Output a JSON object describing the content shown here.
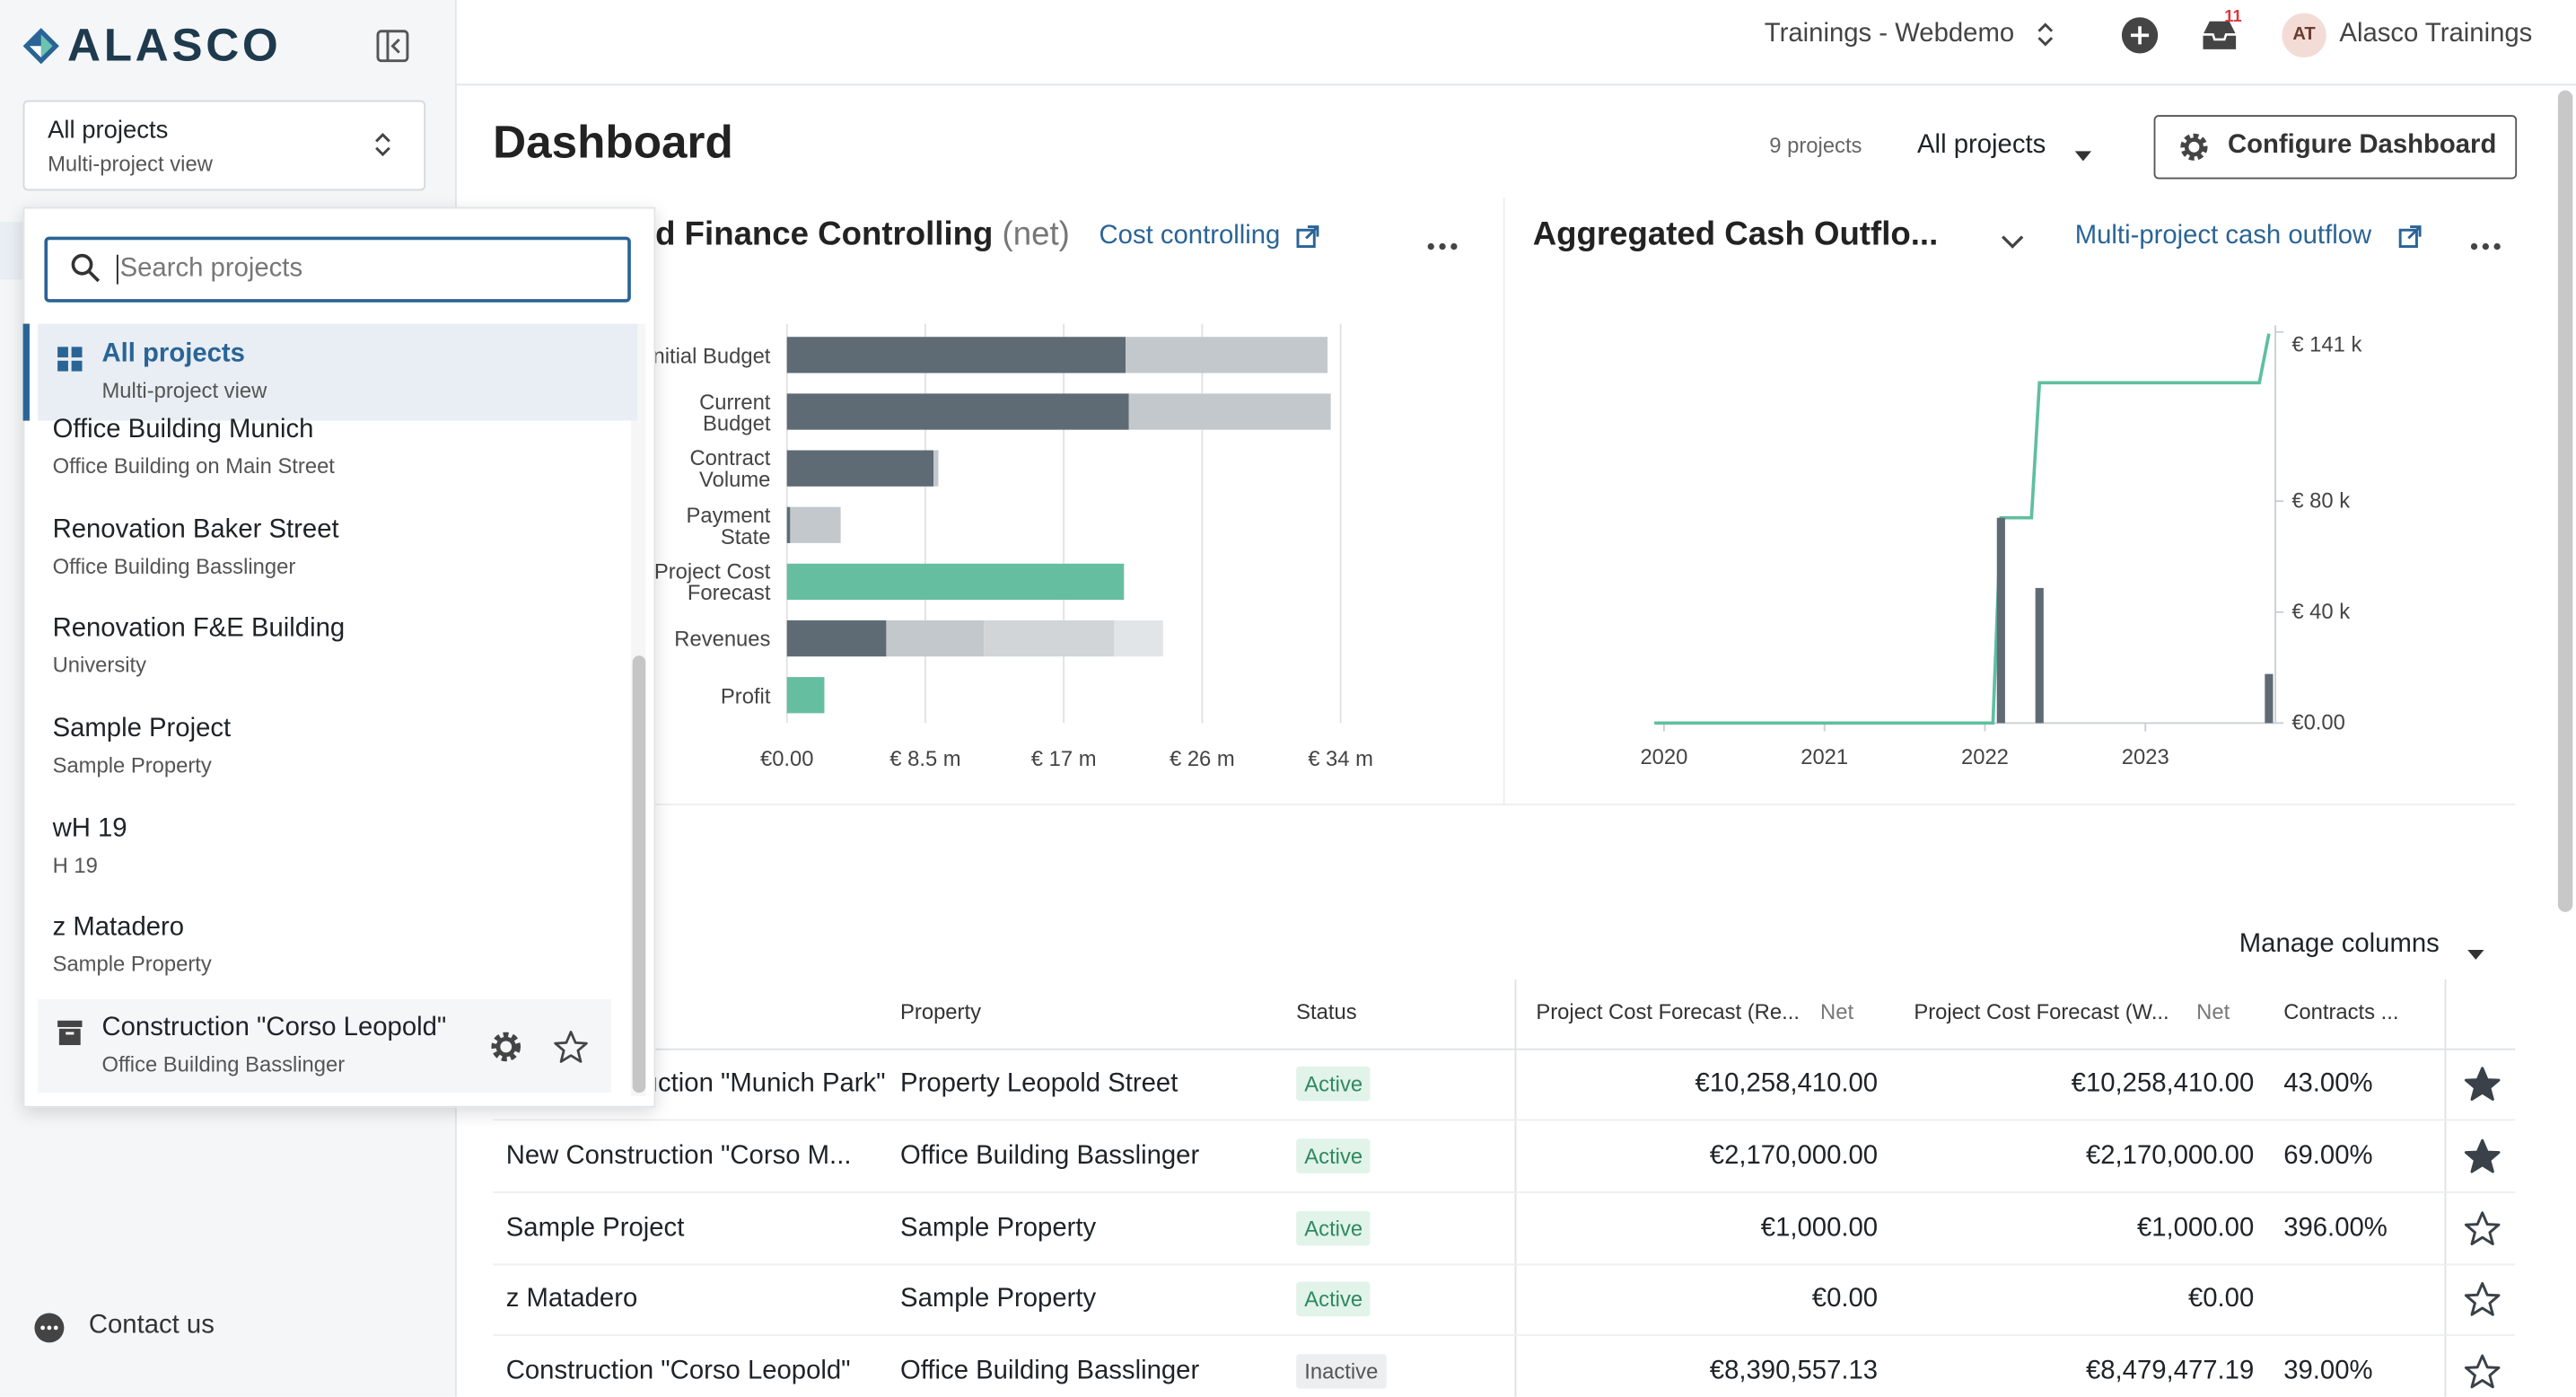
{
  "sidebar": {
    "logo": "ALASCO",
    "project_selector": {
      "title": "All projects",
      "subtitle": "Multi-project view"
    },
    "search_placeholder": "Search projects",
    "projects": [
      {
        "title": "All projects",
        "subtitle": "Multi-project view"
      },
      {
        "title": "Office Building Munich",
        "subtitle": "Office Building on Main Street"
      },
      {
        "title": "Renovation Baker Street",
        "subtitle": "Office Building Basslinger"
      },
      {
        "title": "Renovation F&E Building",
        "subtitle": "University"
      },
      {
        "title": "Sample Project",
        "subtitle": "Sample Property"
      },
      {
        "title": "wH 19",
        "subtitle": "H 19"
      },
      {
        "title": "z Matadero",
        "subtitle": "Sample Property"
      },
      {
        "title": "Construction \"Corso Leopold\"",
        "subtitle": "Office Building Basslinger"
      }
    ],
    "contact": "Contact us"
  },
  "topbar": {
    "workspace": "Trainings - Webdemo",
    "notifications": "11",
    "avatar": "AT",
    "user": "Alasco Trainings"
  },
  "dashboard": {
    "title": "Dashboard",
    "project_count": "9 projects",
    "filter": "All projects",
    "configure": "Configure Dashboard"
  },
  "finance_chart": {
    "type": "bar",
    "orientation": "horizontal",
    "title": "Aggregated Finance Controlling",
    "title_suffix": "(net)",
    "link": "Cost controlling",
    "categories": [
      "Initial Budget",
      "Current Budget",
      "Contract Volume",
      "Payment State",
      "Project Cost Forecast",
      "Revenues",
      "Profit"
    ],
    "series": [
      {
        "color": "#5f6b74",
        "values": [
          20800000,
          21000000,
          9000000,
          200000,
          null,
          6100000,
          null
        ]
      },
      {
        "color": "#c3c8cc",
        "values": [
          12400000,
          12400000,
          300000,
          3100000,
          null,
          6000000,
          null
        ]
      },
      {
        "color": "#d1d5d8",
        "values": [
          null,
          null,
          null,
          null,
          null,
          8000000,
          null
        ]
      },
      {
        "color": "#e2e5e7",
        "values": [
          null,
          null,
          null,
          null,
          null,
          3000000,
          null
        ]
      },
      {
        "color": "#66bea0",
        "values": [
          null,
          null,
          null,
          null,
          20700000,
          null,
          2300000
        ]
      }
    ],
    "xlim": [
      0,
      34000000
    ],
    "xticks": [
      {
        "value": 0,
        "label": "€0.00"
      },
      {
        "value": 8500000,
        "label": "€ 8.5 m"
      },
      {
        "value": 17000000,
        "label": "€ 17 m"
      },
      {
        "value": 25500000,
        "label": "€ 26 m"
      },
      {
        "value": 34000000,
        "label": "€ 34 m"
      }
    ],
    "grid": true
  },
  "cash_chart": {
    "type": "combo",
    "title": "Aggregated Cash Outflo...",
    "link": "Multi-project cash outflow",
    "series": [
      {
        "type": "line",
        "color": "#5fbf9f",
        "x": [
          2019.94,
          2022.05,
          2022.1,
          2022.29,
          2022.34,
          2023.71,
          2023.77
        ],
        "values": [
          0,
          0,
          74000,
          74000,
          122700,
          122700,
          140400
        ]
      },
      {
        "type": "bar",
        "color": "#5f6b74",
        "x": [
          2022.1,
          2022.34,
          2023.77
        ],
        "values": [
          74000,
          48700,
          17700
        ]
      }
    ],
    "xlim": [
      2019.94,
      2023.81
    ],
    "xticks": [
      2020,
      2021,
      2022,
      2023
    ],
    "ylim": [
      0,
      141000
    ],
    "yticks": [
      {
        "value": 0,
        "label": "€0.00"
      },
      {
        "value": 40000,
        "label": "€ 40 k"
      },
      {
        "value": 80000,
        "label": "€ 80 k"
      },
      {
        "value": 141000,
        "label": "€ 141 k"
      }
    ]
  },
  "table": {
    "manage_columns": "Manage columns",
    "columns": [
      {
        "label": "Property"
      },
      {
        "label": "Status"
      },
      {
        "label": "Project Cost Forecast (Re...",
        "unit": "Net"
      },
      {
        "label": "Project Cost Forecast (W...",
        "unit": "Net"
      },
      {
        "label": "Contracts ..."
      }
    ],
    "rows": [
      {
        "project": "New Construction \"Munich Park\"",
        "cells": [
          "Property Leopold Street",
          "Active",
          "€10,258,410.00",
          "€10,258,410.00",
          "43.00%"
        ],
        "badge_color": "green",
        "starred": true
      },
      {
        "project": "New Construction \"Corso M...",
        "cells": [
          "Office Building Basslinger",
          "Active",
          "€2,170,000.00",
          "€2,170,000.00",
          "69.00%"
        ],
        "badge_color": "green",
        "starred": true
      },
      {
        "project": "Sample Project",
        "cells": [
          "Sample Property",
          "Active",
          "€1,000.00",
          "€1,000.00",
          "396.00%"
        ],
        "badge_color": "green",
        "starred": false
      },
      {
        "project": "z Matadero",
        "cells": [
          "Sample Property",
          "Active",
          "€0.00",
          "€0.00",
          null
        ],
        "badge_color": "green",
        "starred": false
      },
      {
        "project": "Construction \"Corso Leopold\"",
        "cells": [
          "Office Building Basslinger",
          "Inactive",
          "€8,390,557.13",
          "€8,479,477.19",
          "39.00%"
        ],
        "badge_color": "grey",
        "starred": false
      }
    ]
  }
}
